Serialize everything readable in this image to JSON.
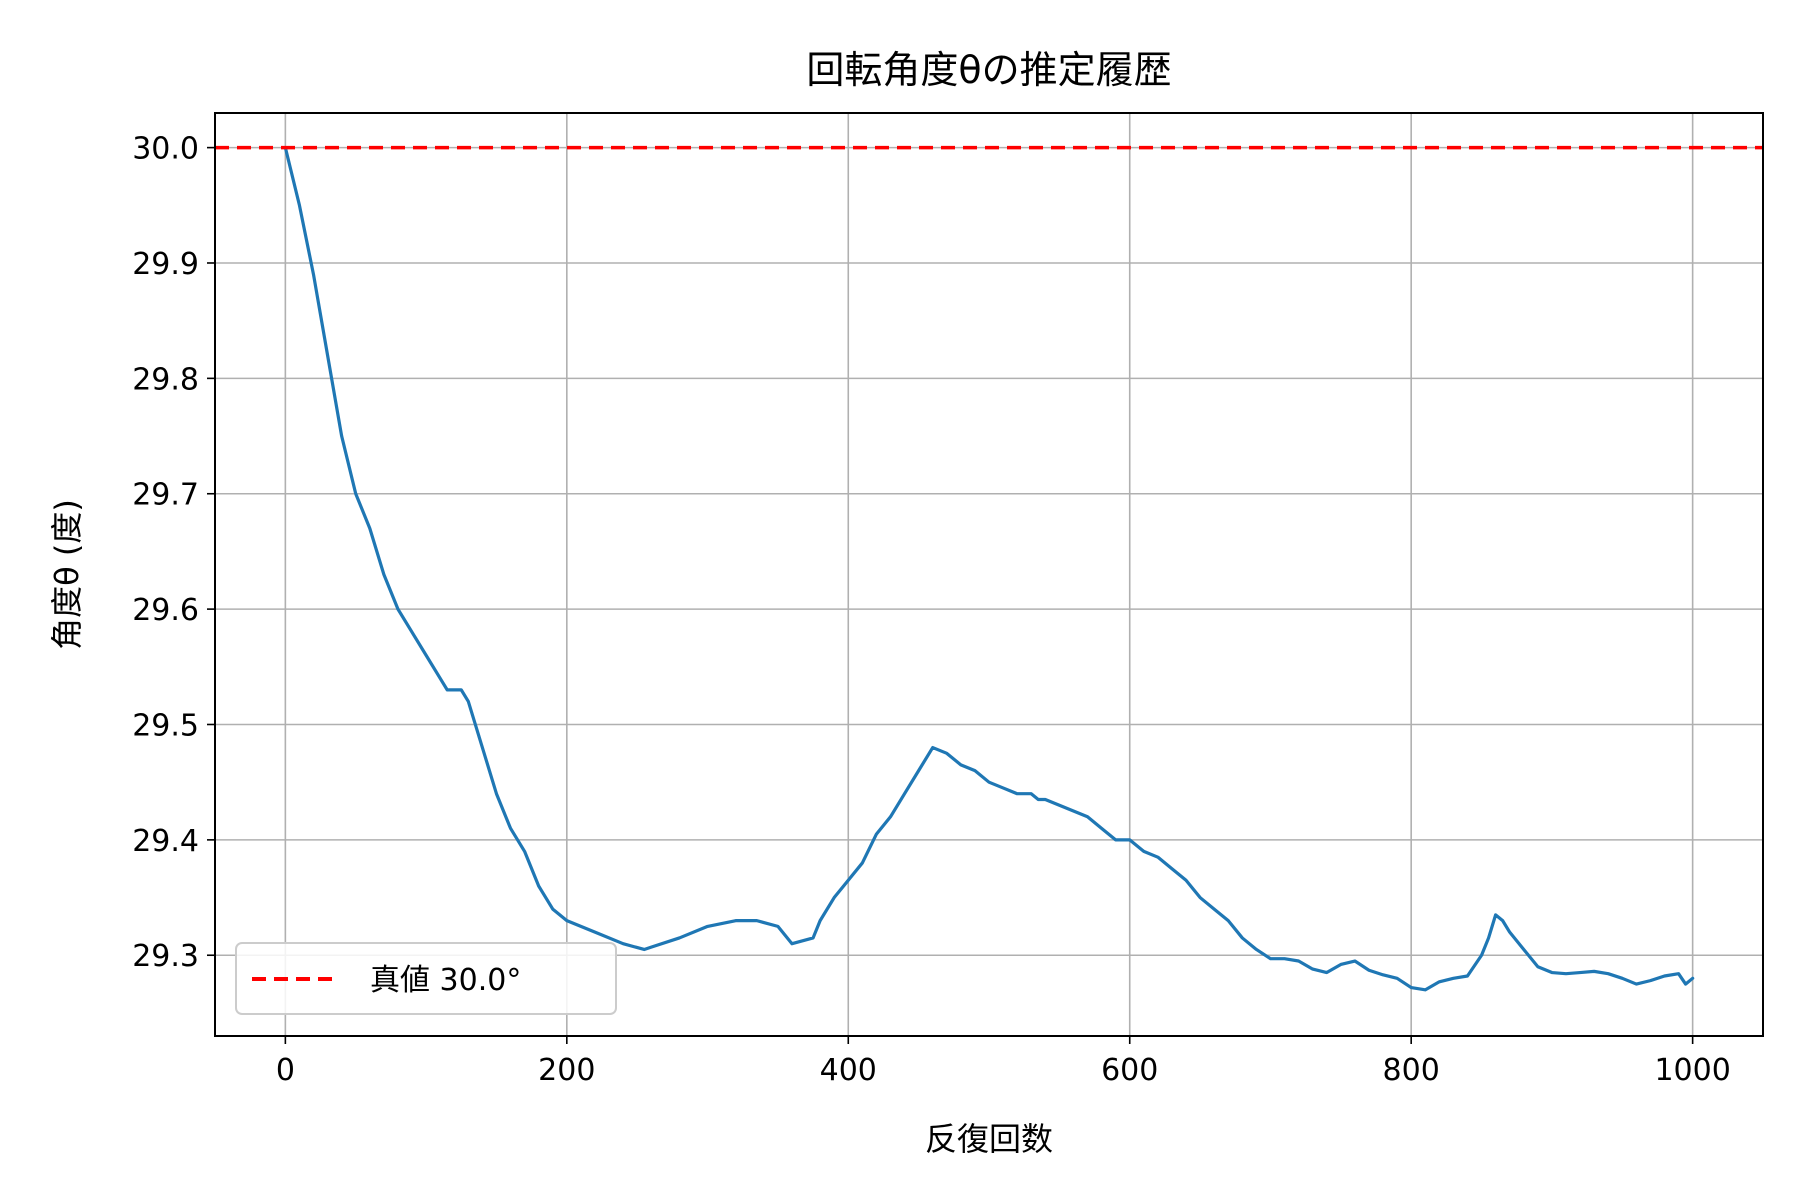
{
  "chart_data": {
    "type": "line",
    "title": "回転角度θの推定履歴",
    "xlabel": "反復回数",
    "ylabel": "角度θ (度)",
    "xlim": [
      -50,
      1050
    ],
    "ylim": [
      29.23,
      30.03
    ],
    "grid": true,
    "legend_position": "lower-left",
    "x_ticks": [
      0,
      200,
      400,
      600,
      800,
      1000
    ],
    "x_tick_labels": [
      "0",
      "200",
      "400",
      "600",
      "800",
      "1000"
    ],
    "y_ticks": [
      29.3,
      29.4,
      29.5,
      29.6,
      29.7,
      29.8,
      29.9,
      30.0
    ],
    "y_tick_labels": [
      "29.3",
      "29.4",
      "29.5",
      "29.6",
      "29.7",
      "29.8",
      "29.9",
      "30.0"
    ],
    "series": [
      {
        "name": "",
        "color": "#1f77b4",
        "style": "solid",
        "x": [
          0,
          10,
          20,
          30,
          40,
          50,
          60,
          70,
          80,
          90,
          100,
          110,
          115,
          120,
          125,
          130,
          140,
          150,
          160,
          170,
          180,
          190,
          200,
          220,
          240,
          255,
          260,
          280,
          300,
          320,
          335,
          350,
          360,
          375,
          380,
          390,
          400,
          410,
          420,
          430,
          440,
          450,
          460,
          470,
          480,
          490,
          500,
          510,
          520,
          530,
          535,
          540,
          550,
          560,
          570,
          580,
          590,
          600,
          610,
          620,
          630,
          640,
          650,
          660,
          670,
          680,
          690,
          700,
          710,
          720,
          730,
          740,
          750,
          760,
          770,
          780,
          790,
          800,
          810,
          820,
          830,
          840,
          850,
          855,
          860,
          865,
          870,
          880,
          890,
          900,
          910,
          920,
          930,
          940,
          950,
          960,
          970,
          980,
          990,
          995,
          1000
        ],
        "values": [
          30.0,
          29.95,
          29.89,
          29.82,
          29.75,
          29.7,
          29.67,
          29.63,
          29.6,
          29.58,
          29.56,
          29.54,
          29.53,
          29.53,
          29.53,
          29.52,
          29.48,
          29.44,
          29.41,
          29.39,
          29.36,
          29.34,
          29.33,
          29.32,
          29.31,
          29.305,
          29.307,
          29.315,
          29.325,
          29.33,
          29.33,
          29.325,
          29.31,
          29.315,
          29.33,
          29.35,
          29.365,
          29.38,
          29.405,
          29.42,
          29.44,
          29.46,
          29.48,
          29.475,
          29.465,
          29.46,
          29.45,
          29.445,
          29.44,
          29.44,
          29.435,
          29.435,
          29.43,
          29.425,
          29.42,
          29.41,
          29.4,
          29.4,
          29.39,
          29.385,
          29.375,
          29.365,
          29.35,
          29.34,
          29.33,
          29.315,
          29.305,
          29.297,
          29.297,
          29.295,
          29.288,
          29.285,
          29.292,
          29.295,
          29.287,
          29.283,
          29.28,
          29.272,
          29.27,
          29.277,
          29.28,
          29.282,
          29.3,
          29.315,
          29.335,
          29.33,
          29.32,
          29.305,
          29.29,
          29.285,
          29.284,
          29.285,
          29.286,
          29.284,
          29.28,
          29.275,
          29.278,
          29.282,
          29.284,
          29.275,
          29.28
        ]
      },
      {
        "name": "真値 30.0°",
        "color": "#ff0000",
        "style": "dashed",
        "x": [
          -50,
          1050
        ],
        "values": [
          30.0,
          30.0
        ]
      }
    ],
    "colors": {
      "estimate_line": "#1f77b4",
      "true_value_line": "#ff0000",
      "grid": "#b0b0b0",
      "axes": "#000000"
    }
  }
}
